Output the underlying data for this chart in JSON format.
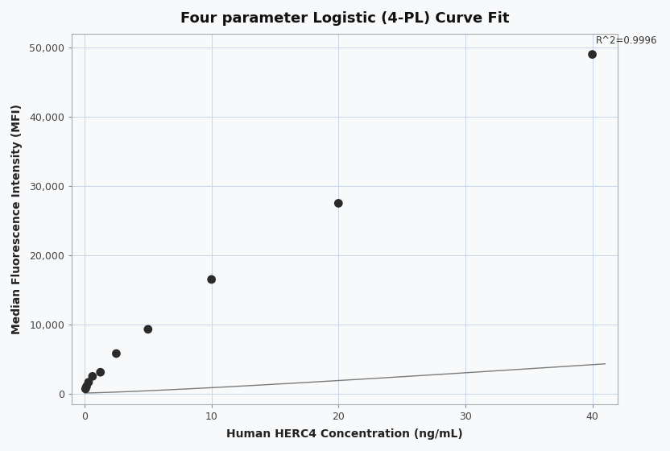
{
  "title": "Four parameter Logistic (4-PL) Curve Fit",
  "xlabel": "Human HERC4 Concentration (ng/mL)",
  "ylabel": "Median Fluorescence Intensity (MFI)",
  "scatter_x": [
    0.078,
    0.156,
    0.313,
    0.625,
    1.25,
    2.5,
    5.0,
    10.0,
    20.0,
    40.0
  ],
  "scatter_y": [
    700,
    1050,
    1650,
    2500,
    3100,
    5800,
    9300,
    16500,
    27500,
    49000
  ],
  "xlim": [
    -1,
    42
  ],
  "ylim": [
    -1500,
    52000
  ],
  "xticks": [
    0,
    10,
    20,
    30,
    40
  ],
  "yticks": [
    0,
    10000,
    20000,
    30000,
    40000,
    50000
  ],
  "ytick_labels": [
    "0",
    "10,000",
    "20,000",
    "30,000",
    "40,000",
    "50,000"
  ],
  "r_squared": "R^2=0.9996",
  "dot_color": "#2b2b2b",
  "line_color": "#7a7a7a",
  "grid_color": "#c8d4e8",
  "background_color": "#f8f9fb",
  "title_fontsize": 13,
  "axis_label_fontsize": 10,
  "tick_fontsize": 9
}
